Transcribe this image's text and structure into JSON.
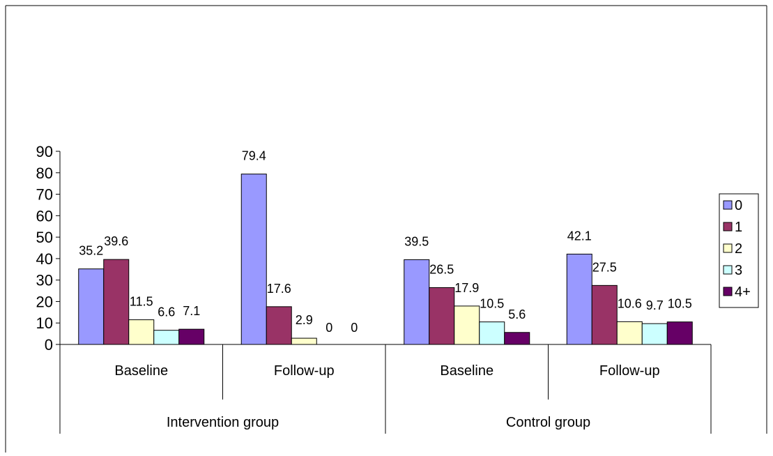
{
  "chart_data": {
    "type": "bar",
    "ylim": [
      0,
      90
    ],
    "yticks": [
      "0",
      "10",
      "20",
      "30",
      "40",
      "50",
      "60",
      "70",
      "80",
      "90"
    ],
    "categories": [
      "Baseline",
      "Follow-up",
      "Baseline",
      "Follow-up"
    ],
    "groups": [
      {
        "label": "Intervention group",
        "span": [
          0,
          1
        ]
      },
      {
        "label": "Control group",
        "span": [
          2,
          3
        ]
      }
    ],
    "series": [
      {
        "name": "0",
        "values": [
          35.2,
          79.4,
          39.5,
          42.1
        ],
        "labels": [
          "35.2",
          "79.4",
          "39.5",
          "42.1"
        ]
      },
      {
        "name": "1",
        "values": [
          39.6,
          17.6,
          26.5,
          27.5
        ],
        "labels": [
          "39.6",
          "17.6",
          "26.5",
          "27.5"
        ]
      },
      {
        "name": "2",
        "values": [
          11.5,
          2.9,
          17.9,
          10.6
        ],
        "labels": [
          "11.5",
          "2.9",
          "17.9",
          "10.6"
        ]
      },
      {
        "name": "3",
        "values": [
          6.6,
          0,
          10.5,
          9.7
        ],
        "labels": [
          "6.6",
          "0",
          "10.5",
          "9.7"
        ]
      },
      {
        "name": "4+",
        "values": [
          7.1,
          0,
          5.6,
          10.5
        ],
        "labels": [
          "7.1",
          "0",
          "5.6",
          "10.5"
        ]
      }
    ],
    "colors": [
      "#9999ff",
      "#993366",
      "#ffffcc",
      "#ccffff",
      "#660066"
    ],
    "legend_position": "right",
    "grid": false
  }
}
